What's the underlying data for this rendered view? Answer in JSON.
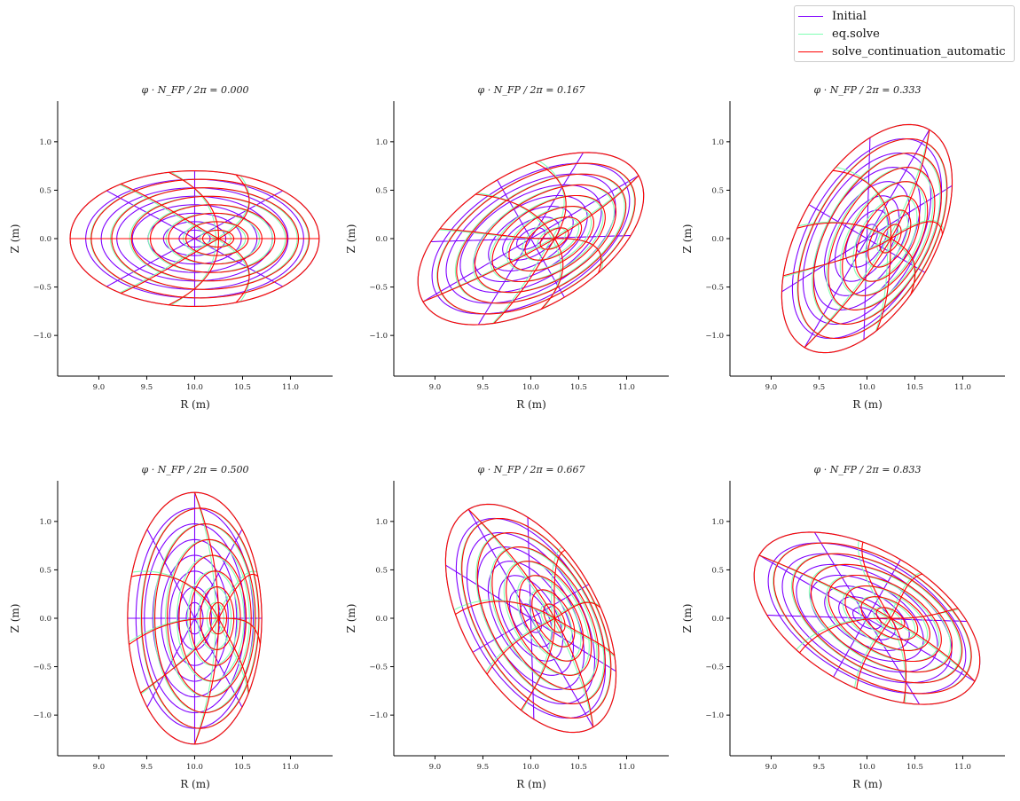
{
  "chart_data": [
    {
      "type": "line",
      "title": "φ · N_FP / 2π = 0.000",
      "phi": 0.0
    },
    {
      "type": "line",
      "title": "φ · N_FP / 2π = 0.167",
      "phi": 0.167
    },
    {
      "type": "line",
      "title": "φ · N_FP / 2π = 0.333",
      "phi": 0.333
    },
    {
      "type": "line",
      "title": "φ · N_FP / 2π = 0.500",
      "phi": 0.5
    },
    {
      "type": "line",
      "title": "φ · N_FP / 2π = 0.667",
      "phi": 0.667
    },
    {
      "type": "line",
      "title": "φ · N_FP / 2π = 0.833",
      "phi": 0.833
    }
  ],
  "axes": {
    "xlabel": "R (m)",
    "ylabel": "Z (m)",
    "xlim": [
      8.57,
      11.44
    ],
    "ylim": [
      -1.42,
      1.42
    ],
    "xticks": [
      9.0,
      9.5,
      10.0,
      10.5,
      11.0
    ],
    "xtick_labels": [
      "9.0",
      "9.5",
      "10.0",
      "10.5",
      "11.0"
    ],
    "yticks": [
      -1.0,
      -0.5,
      0.0,
      0.5,
      1.0
    ],
    "ytick_labels": [
      "−1.0",
      "−0.5",
      "0.0",
      "0.5",
      "1.0"
    ],
    "grid": false
  },
  "surfaces": {
    "rho": [
      0.125,
      0.25,
      0.375,
      0.5,
      0.625,
      0.75,
      0.875,
      1.0
    ],
    "theta_deg": [
      0,
      45,
      90,
      135,
      180,
      225,
      270,
      315
    ],
    "major_radius": 10.0,
    "semi_major": 1.3,
    "semi_minor": 0.7
  },
  "series": [
    {
      "name": "Initial",
      "color": "#7f00ff",
      "axis_shift": 0.0,
      "theta_warp": 0.0
    },
    {
      "name": "eq.solve",
      "color": "#80ffb4",
      "axis_shift": 0.22,
      "theta_warp": 0.55
    },
    {
      "name": "solve_continuation_automatic",
      "color": "#ff0000",
      "axis_shift": 0.25,
      "theta_warp": 0.6
    }
  ],
  "legend": {
    "placement": "top-right"
  }
}
